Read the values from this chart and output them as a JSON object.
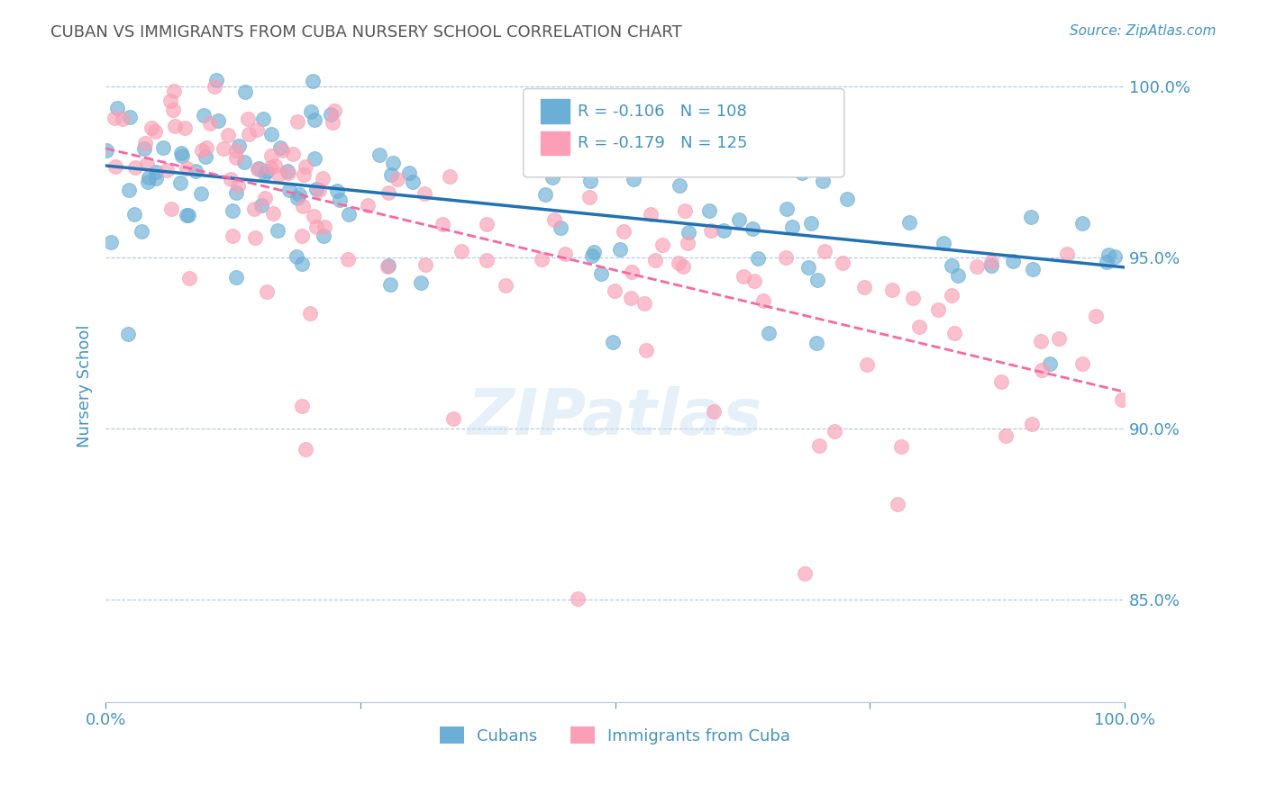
{
  "title": "CUBAN VS IMMIGRANTS FROM CUBA NURSERY SCHOOL CORRELATION CHART",
  "source_text": "Source: ZipAtlas.com",
  "ylabel": "Nursery School",
  "legend_label1": "Cubans",
  "legend_label2": "Immigrants from Cuba",
  "r1": -0.106,
  "n1": 108,
  "r2": -0.179,
  "n2": 125,
  "color_blue": "#6baed6",
  "color_pink": "#fa9fb5",
  "color_line_blue": "#2171b5",
  "color_line_pink": "#f768a1",
  "color_text": "#4393c3",
  "color_grid": "#aec7e8",
  "xlim": [
    0.0,
    1.0
  ],
  "ylim": [
    0.82,
    1.005
  ],
  "yticks": [
    0.85,
    0.9,
    0.95,
    1.0
  ],
  "ytick_labels": [
    "85.0%",
    "90.0%",
    "95.0%",
    "100.0%"
  ],
  "watermark": "ZIPatlas"
}
